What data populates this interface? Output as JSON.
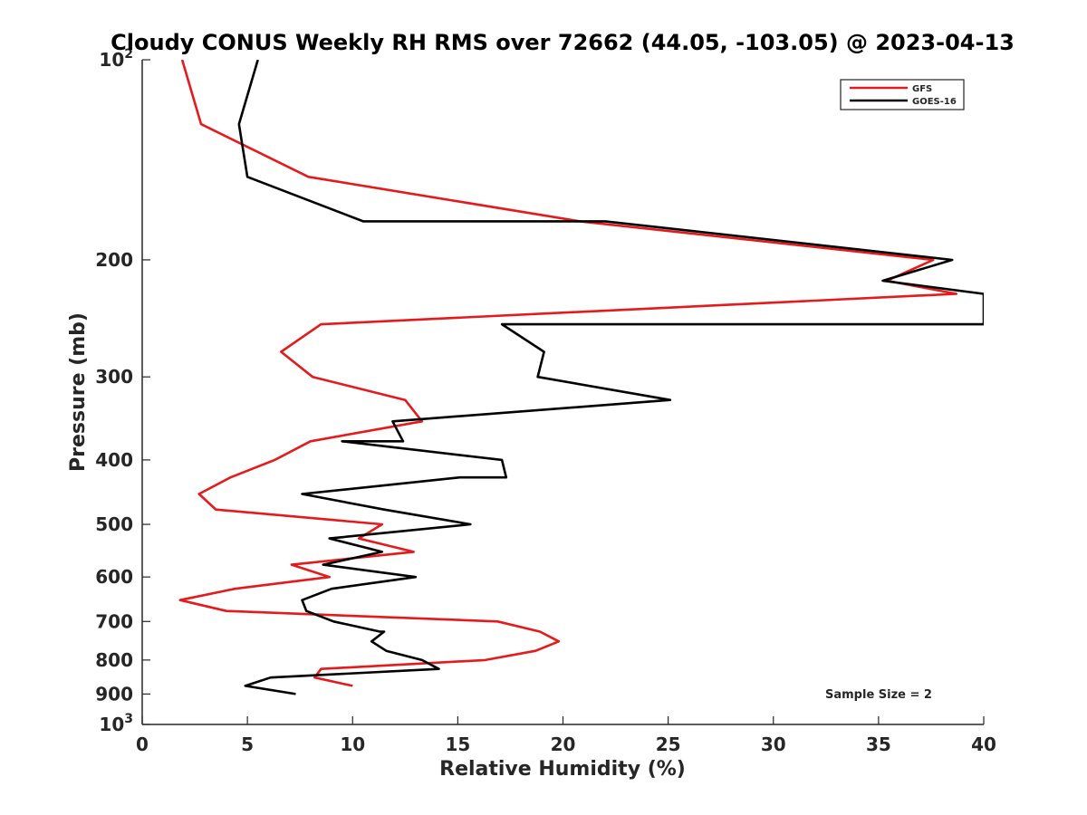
{
  "chart_data": {
    "type": "line",
    "title": "Cloudy CONUS Weekly RH RMS over 72662 (44.05, -103.05) @ 2023-04-13",
    "xlabel": "Relative Humidity (%)",
    "ylabel": "Pressure (mb)",
    "xlim": [
      0,
      40
    ],
    "ylim": [
      100,
      1000
    ],
    "y_scale": "log",
    "y_reversed": true,
    "grid": false,
    "legend_position": "top-right",
    "x_ticks": [
      "0",
      "5",
      "10",
      "15",
      "20",
      "25",
      "30",
      "35",
      "40"
    ],
    "x_tick_values": [
      0,
      5,
      10,
      15,
      20,
      25,
      30,
      35,
      40
    ],
    "y_ticks": [
      {
        "value": 100,
        "label": "10",
        "sup": "2"
      },
      {
        "value": 200,
        "label": "200",
        "sup": ""
      },
      {
        "value": 300,
        "label": "300",
        "sup": ""
      },
      {
        "value": 400,
        "label": "400",
        "sup": ""
      },
      {
        "value": 500,
        "label": "500",
        "sup": ""
      },
      {
        "value": 600,
        "label": "600",
        "sup": ""
      },
      {
        "value": 700,
        "label": "700",
        "sup": ""
      },
      {
        "value": 800,
        "label": "800",
        "sup": ""
      },
      {
        "value": 900,
        "label": "900",
        "sup": ""
      },
      {
        "value": 1000,
        "label": "10",
        "sup": "3"
      }
    ],
    "annotation": "Sample Size = 2",
    "series": [
      {
        "name": "GFS",
        "color": "#e41a1c",
        "points": [
          [
            1.9,
            100
          ],
          [
            2.8,
            125
          ],
          [
            7.9,
            150
          ],
          [
            20.8,
            175
          ],
          [
            37.6,
            200
          ],
          [
            35.4,
            215
          ],
          [
            38.7,
            225
          ],
          [
            8.5,
            250
          ],
          [
            6.6,
            275
          ],
          [
            8.1,
            300
          ],
          [
            12.5,
            325
          ],
          [
            13.3,
            350
          ],
          [
            8.0,
            375
          ],
          [
            6.3,
            400
          ],
          [
            4.2,
            425
          ],
          [
            2.7,
            450
          ],
          [
            3.5,
            475
          ],
          [
            11.4,
            500
          ],
          [
            10.3,
            525
          ],
          [
            12.9,
            550
          ],
          [
            7.1,
            575
          ],
          [
            8.9,
            600
          ],
          [
            4.4,
            625
          ],
          [
            1.8,
            650
          ],
          [
            4.0,
            675
          ],
          [
            16.9,
            700
          ],
          [
            18.9,
            725
          ],
          [
            19.8,
            750
          ],
          [
            18.7,
            775
          ],
          [
            16.3,
            800
          ],
          [
            8.5,
            825
          ],
          [
            8.2,
            850
          ],
          [
            10.0,
            875
          ]
        ]
      },
      {
        "name": "GOES-16",
        "color": "#000000",
        "points": [
          [
            5.5,
            100
          ],
          [
            4.6,
            125
          ],
          [
            5.0,
            150
          ],
          [
            10.5,
            175
          ],
          [
            22.0,
            175
          ],
          [
            38.5,
            200
          ],
          [
            35.2,
            215
          ],
          [
            40.0,
            225
          ],
          [
            40.0,
            250
          ],
          [
            17.1,
            250
          ],
          [
            19.1,
            275
          ],
          [
            18.8,
            300
          ],
          [
            25.1,
            325
          ],
          [
            11.9,
            350
          ],
          [
            12.4,
            375
          ],
          [
            9.5,
            375
          ],
          [
            17.1,
            400
          ],
          [
            17.3,
            425
          ],
          [
            15.1,
            425
          ],
          [
            7.6,
            450
          ],
          [
            11.5,
            475
          ],
          [
            15.6,
            500
          ],
          [
            8.9,
            525
          ],
          [
            11.4,
            550
          ],
          [
            8.6,
            575
          ],
          [
            13.0,
            600
          ],
          [
            9.0,
            625
          ],
          [
            7.6,
            650
          ],
          [
            7.8,
            675
          ],
          [
            9.1,
            700
          ],
          [
            11.3,
            725
          ],
          [
            11.5,
            725
          ],
          [
            10.9,
            750
          ],
          [
            11.6,
            775
          ],
          [
            13.3,
            800
          ],
          [
            14.1,
            825
          ],
          [
            6.1,
            850
          ],
          [
            4.9,
            875
          ],
          [
            7.3,
            900
          ]
        ]
      }
    ]
  }
}
